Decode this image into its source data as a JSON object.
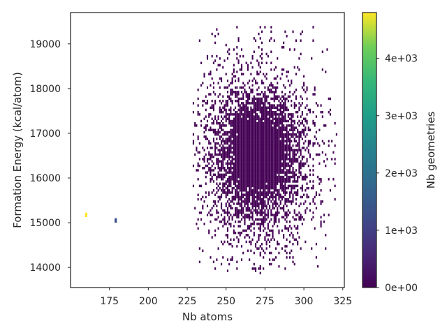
{
  "chart_data": {
    "type": "heatmap",
    "title": "",
    "xlabel": "Nb atoms",
    "ylabel": "Formation Energy (kcal/atom)",
    "xlim": [
      150,
      326
    ],
    "ylim": [
      13550,
      19700
    ],
    "xticks": [
      175,
      200,
      225,
      250,
      275,
      300,
      325
    ],
    "xtick_labels": [
      "175",
      "200",
      "225",
      "250",
      "275",
      "300",
      "325"
    ],
    "yticks": [
      14000,
      15000,
      16000,
      17000,
      18000,
      19000
    ],
    "ytick_labels": [
      "14000",
      "15000",
      "16000",
      "17000",
      "18000",
      "19000"
    ],
    "grid": false,
    "colorbar": {
      "label": "Nb geometries",
      "colormap": "viridis",
      "range": [
        0,
        4800
      ],
      "ticks": [
        0,
        1000,
        2000,
        3000,
        4000
      ],
      "tick_labels": [
        "0e+00",
        "1e+03",
        "2e+03",
        "3e+03",
        "4e+03"
      ]
    },
    "bins": {
      "x_width": 1,
      "y_width": 50
    },
    "cluster": {
      "x_range": [
        229,
        321
      ],
      "y_range": [
        13850,
        19400
      ],
      "center": [
        270,
        16500
      ],
      "typical_count": "< 100",
      "color": "#440154"
    },
    "highlighted_cells": [
      {
        "x": 160,
        "y": 15125,
        "count": 4800
      },
      {
        "x": 179,
        "y": 15000,
        "count": 1300
      }
    ]
  }
}
